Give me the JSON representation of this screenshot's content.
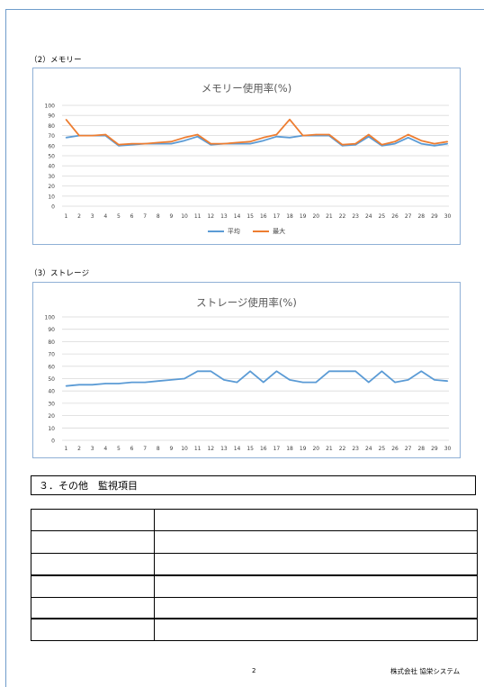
{
  "sections": {
    "memory_heading": "（2）メモリー",
    "storage_heading": "（3）ストレージ",
    "other_heading": "３．その他　監視項目"
  },
  "legend": {
    "avg": "平均",
    "max": "最大"
  },
  "colors": {
    "avg": "#5b9bd5",
    "max": "#ed7d31",
    "grid": "#d9d9d9",
    "chart_border": "#8fb0d6"
  },
  "table": {
    "rows": [
      [
        "",
        ""
      ],
      [
        "",
        ""
      ],
      [
        "",
        ""
      ],
      [
        "",
        ""
      ],
      [
        "",
        ""
      ],
      [
        "",
        ""
      ]
    ]
  },
  "footer": {
    "page_number": "2",
    "company": "株式会社 協栄システム"
  },
  "chart_data": [
    {
      "type": "line",
      "title": "メモリー使用率(%)",
      "categories": [
        "1",
        "2",
        "3",
        "4",
        "5",
        "6",
        "7",
        "8",
        "9",
        "10",
        "11",
        "12",
        "13",
        "14",
        "15",
        "16",
        "17",
        "18",
        "19",
        "20",
        "21",
        "22",
        "23",
        "24",
        "25",
        "26",
        "27",
        "28",
        "29",
        "30"
      ],
      "ylim": [
        0,
        100
      ],
      "yticks": [
        0,
        10,
        20,
        30,
        40,
        50,
        60,
        70,
        80,
        90,
        100
      ],
      "grid": true,
      "legend": "bottom",
      "series": [
        {
          "name": "平均",
          "color": "#5b9bd5",
          "values": [
            68,
            70,
            70,
            70,
            60,
            61,
            62,
            62,
            62,
            65,
            69,
            61,
            62,
            62,
            62,
            65,
            69,
            68,
            70,
            70,
            70,
            60,
            61,
            69,
            60,
            62,
            68,
            62,
            60,
            62
          ]
        },
        {
          "name": "最大",
          "color": "#ed7d31",
          "values": [
            86,
            70,
            70,
            71,
            61,
            62,
            62,
            63,
            64,
            68,
            71,
            62,
            62,
            63,
            64,
            68,
            71,
            86,
            70,
            71,
            71,
            61,
            62,
            71,
            61,
            64,
            71,
            65,
            62,
            64
          ]
        }
      ]
    },
    {
      "type": "line",
      "title": "ストレージ使用率(%)",
      "categories": [
        "1",
        "2",
        "3",
        "4",
        "5",
        "6",
        "7",
        "8",
        "9",
        "10",
        "11",
        "12",
        "13",
        "14",
        "15",
        "16",
        "17",
        "18",
        "19",
        "20",
        "21",
        "22",
        "23",
        "24",
        "25",
        "26",
        "27",
        "28",
        "29",
        "30"
      ],
      "ylim": [
        0,
        100
      ],
      "yticks": [
        0,
        10,
        20,
        30,
        40,
        50,
        60,
        70,
        80,
        90,
        100
      ],
      "grid": true,
      "series": [
        {
          "color": "#5b9bd5",
          "values": [
            44,
            45,
            45,
            46,
            46,
            47,
            47,
            48,
            49,
            50,
            56,
            56,
            49,
            47,
            56,
            47,
            56,
            49,
            47,
            47,
            56,
            56,
            56,
            47,
            56,
            47,
            49,
            56,
            49,
            48
          ]
        }
      ]
    }
  ]
}
